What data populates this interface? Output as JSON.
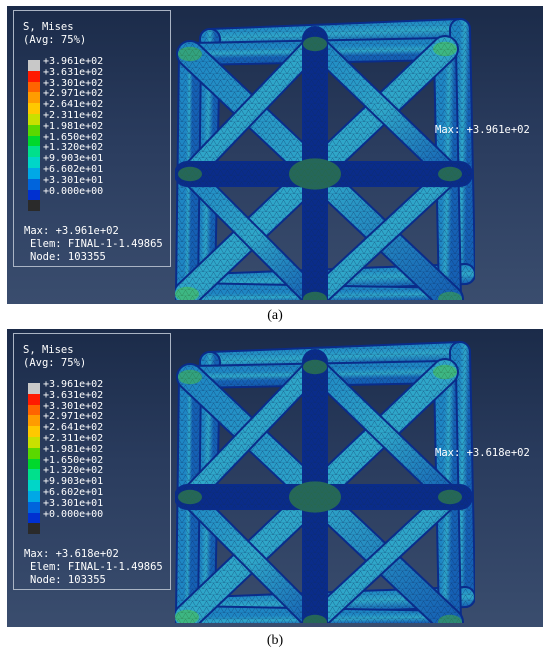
{
  "colors": [
    "#c8c8c8",
    "#ff1a00",
    "#ff6400",
    "#ff9c00",
    "#ffc800",
    "#c8e000",
    "#5ad800",
    "#00d82c",
    "#00e08c",
    "#00d6c8",
    "#00a8e6",
    "#0064dc",
    "#0030d0",
    "#2a2a2a"
  ],
  "panels": [
    {
      "legend_title": [
        "S, Mises",
        "(Avg: 75%)"
      ],
      "legend_values": [
        "+3.961e+02",
        "+3.631e+02",
        "+3.301e+02",
        "+2.971e+02",
        "+2.641e+02",
        "+2.311e+02",
        "+1.981e+02",
        "+1.650e+02",
        "+1.320e+02",
        "+9.903e+01",
        "+6.602e+01",
        "+3.301e+01",
        "+0.000e+00"
      ],
      "max_text": "Max: +3.961e+02",
      "elem_text": "Elem: FINAL-1-1.49865",
      "node_text": "Node: 103355",
      "max_label": "Max: +3.961e+02",
      "caption": "(a)"
    },
    {
      "legend_title": [
        "S, Mises",
        "(Avg: 75%)"
      ],
      "legend_values": [
        "+3.961e+02",
        "+3.631e+02",
        "+3.301e+02",
        "+2.971e+02",
        "+2.641e+02",
        "+2.311e+02",
        "+1.981e+02",
        "+1.650e+02",
        "+1.320e+02",
        "+9.903e+01",
        "+6.602e+01",
        "+3.301e+01",
        "+0.000e+00"
      ],
      "max_text": "Max: +3.618e+02",
      "elem_text": "Elem: FINAL-1-1.49865",
      "node_text": "Node: 103355",
      "max_label": "Max: +3.618e+02",
      "caption": "(b)"
    }
  ]
}
